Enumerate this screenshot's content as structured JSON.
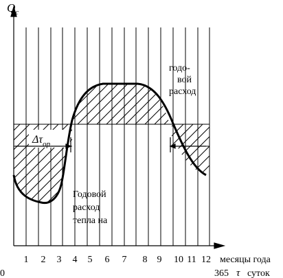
{
  "y_axis_label": "Q",
  "y_axis_subscript": "c",
  "x_axis_label_line1": "месяцы года",
  "x_axis_label_days": "365",
  "x_axis_tau": "τ",
  "x_axis_unit": "суток",
  "origin_label": "0",
  "month_ticks": [
    "1",
    "2",
    "3",
    "4",
    "5",
    "6",
    "7",
    "8",
    "9",
    "10",
    "11",
    "12"
  ],
  "delta_tau_symbol": "Δτ",
  "delta_tau_subscript": "ор",
  "annotation_top_line1": "годо-",
  "annotation_top_line2": "вой",
  "annotation_top_line3": "расход",
  "annotation_bottom_line1": "Годовой",
  "annotation_bottom_line2": "расход",
  "annotation_bottom_line3": "тепла на"
}
